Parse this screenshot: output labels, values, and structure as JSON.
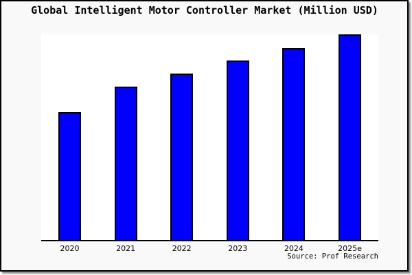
{
  "title": "Global Intelligent Motor Controller Market (Million USD)",
  "source": "Source: Prof Research",
  "colors": {
    "bar_fill": "#0000ff",
    "bar_border": "#000000",
    "outer_background": "#f9f9f9",
    "plot_background": "#ffffff",
    "axis_line": "#000000",
    "frame_border": "#000000",
    "text": "#000000"
  },
  "chart_data": {
    "type": "bar",
    "categories": [
      "2020",
      "2021",
      "2022",
      "2023",
      "2024",
      "2025e"
    ],
    "values": [
      62.5,
      74.9,
      81.1,
      87.4,
      93.4,
      100
    ],
    "title": "Global Intelligent Motor Controller Market (Million USD)",
    "xlabel": "",
    "ylabel": "",
    "ylim": [
      0,
      100
    ],
    "grid": false,
    "legend": false,
    "annotations": [
      "Source: Prof Research"
    ]
  }
}
